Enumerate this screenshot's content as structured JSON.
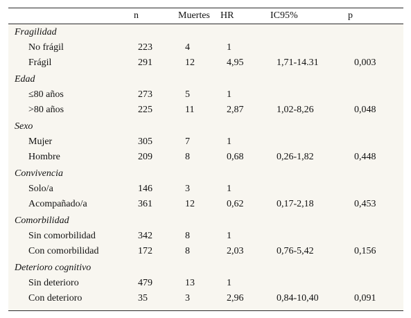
{
  "table": {
    "headers": {
      "label": "",
      "n": "n",
      "muertes": "Muertes",
      "hr": "HR",
      "ic95": "IC95%",
      "p": "p"
    },
    "groups": [
      {
        "title": "Fragilidad",
        "rows": [
          {
            "label": "No frágil",
            "n": "223",
            "muertes": "4",
            "hr": "1",
            "ic95": "",
            "p": ""
          },
          {
            "label": "Frágil",
            "n": "291",
            "muertes": "12",
            "hr": "4,95",
            "ic95": "1,71-14.31",
            "p": "0,003"
          }
        ]
      },
      {
        "title": "Edad",
        "rows": [
          {
            "label": "≤80 años",
            "n": "273",
            "muertes": "5",
            "hr": "1",
            "ic95": "",
            "p": ""
          },
          {
            "label": ">80 años",
            "n": "225",
            "muertes": "11",
            "hr": "2,87",
            "ic95": "1,02-8,26",
            "p": "0,048"
          }
        ]
      },
      {
        "title": "Sexo",
        "rows": [
          {
            "label": "Mujer",
            "n": "305",
            "muertes": "7",
            "hr": "1",
            "ic95": "",
            "p": ""
          },
          {
            "label": "Hombre",
            "n": "209",
            "muertes": "8",
            "hr": "0,68",
            "ic95": "0,26-1,82",
            "p": "0,448"
          }
        ]
      },
      {
        "title": "Convivencia",
        "rows": [
          {
            "label": "Solo/a",
            "n": "146",
            "muertes": "3",
            "hr": "1",
            "ic95": "",
            "p": ""
          },
          {
            "label": "Acompañado/a",
            "n": "361",
            "muertes": "12",
            "hr": "0,62",
            "ic95": "0,17-2,18",
            "p": "0,453"
          }
        ]
      },
      {
        "title": "Comorbilidad",
        "rows": [
          {
            "label": "Sin comorbilidad",
            "n": "342",
            "muertes": "8",
            "hr": "1",
            "ic95": "",
            "p": ""
          },
          {
            "label": "Con comorbilidad",
            "n": "172",
            "muertes": "8",
            "hr": "2,03",
            "ic95": "0,76-5,42",
            "p": "0,156"
          }
        ]
      },
      {
        "title": "Deterioro cognitivo",
        "rows": [
          {
            "label": "Sin deterioro",
            "n": "479",
            "muertes": "13",
            "hr": "1",
            "ic95": "",
            "p": ""
          },
          {
            "label": "Con deterioro",
            "n": "35",
            "muertes": "3",
            "hr": "2,96",
            "ic95": "0,84-10,40",
            "p": "0,091"
          }
        ]
      }
    ]
  }
}
